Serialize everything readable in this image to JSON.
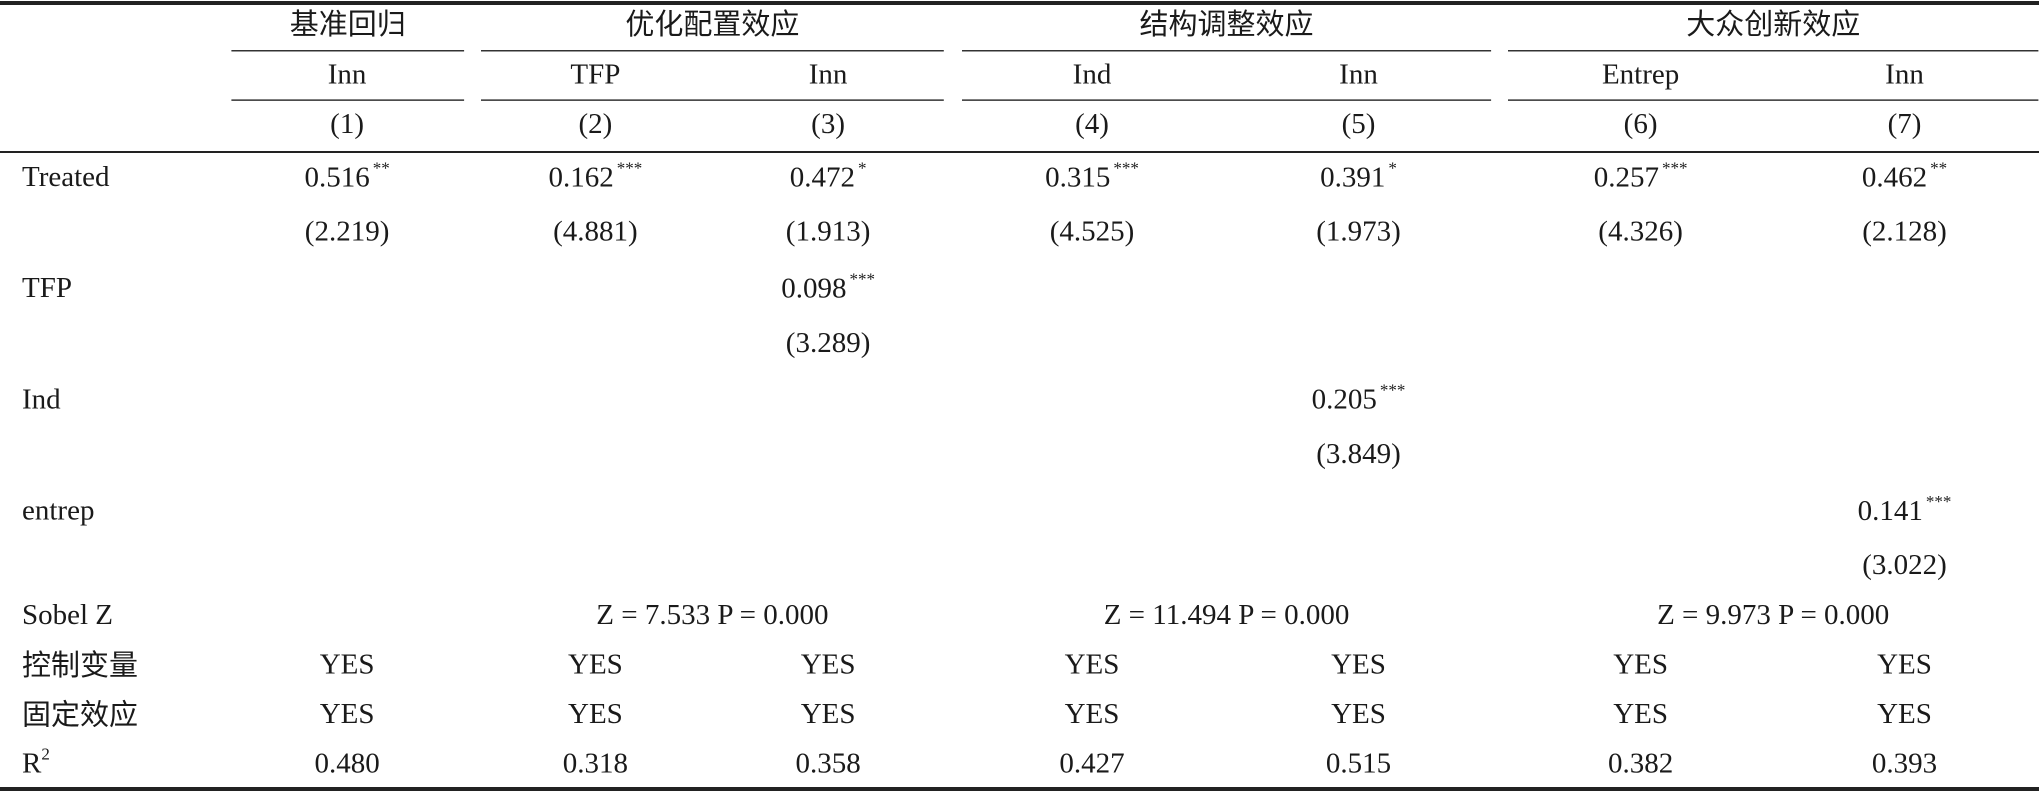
{
  "header": {
    "groups": [
      "基准回归",
      "优化配置效应",
      "结构调整效应",
      "大众创新效应"
    ],
    "dependent": [
      "Inn",
      "TFP",
      "Inn",
      "Ind",
      "Inn",
      "Entrep",
      "Inn"
    ],
    "numbers": [
      "(1)",
      "(2)",
      "(3)",
      "(4)",
      "(5)",
      "(6)",
      "(7)"
    ]
  },
  "rows": [
    {
      "label": "Treated",
      "coefficients": [
        {
          "value": "0.516",
          "stars": "**"
        },
        {
          "value": "0.162",
          "stars": "***"
        },
        {
          "value": "0.472",
          "stars": "*"
        },
        {
          "value": "0.315",
          "stars": "***"
        },
        {
          "value": "0.391",
          "stars": "*"
        },
        {
          "value": "0.257",
          "stars": "***"
        },
        {
          "value": "0.462",
          "stars": "**"
        }
      ],
      "t_stats": [
        "(2.219)",
        "(4.881)",
        "(1.913)",
        "(4.525)",
        "(1.973)",
        "(4.326)",
        "(2.128)"
      ]
    },
    {
      "label": "TFP",
      "coefficients": [
        null,
        null,
        {
          "value": "0.098",
          "stars": "***"
        },
        null,
        null,
        null,
        null
      ],
      "t_stats": [
        null,
        null,
        "(3.289)",
        null,
        null,
        null,
        null
      ]
    },
    {
      "label": "Ind",
      "coefficients": [
        null,
        null,
        null,
        null,
        {
          "value": "0.205",
          "stars": "***"
        },
        null,
        null
      ],
      "t_stats": [
        null,
        null,
        null,
        null,
        "(3.849)",
        null,
        null
      ]
    },
    {
      "label": "entrep",
      "coefficients": [
        null,
        null,
        null,
        null,
        null,
        null,
        {
          "value": "0.141",
          "stars": "***"
        }
      ],
      "t_stats": [
        null,
        null,
        null,
        null,
        null,
        null,
        "(3.022)"
      ]
    }
  ],
  "sobel": {
    "label": "Sobel Z",
    "cells": [
      "Z = 7.533  P = 0.000",
      "Z = 11.494  P = 0.000",
      "Z = 9.973  P = 0.000"
    ]
  },
  "controls": {
    "label": "控制变量",
    "cells": [
      "YES",
      "YES",
      "YES",
      "YES",
      "YES",
      "YES",
      "YES"
    ]
  },
  "fixed_effects": {
    "label": "固定效应",
    "cells": [
      "YES",
      "YES",
      "YES",
      "YES",
      "YES",
      "YES",
      "YES"
    ]
  },
  "r_squared": {
    "label": "R",
    "label_sup": "2",
    "cells": [
      "0.480",
      "0.318",
      "0.358",
      "0.427",
      "0.515",
      "0.382",
      "0.393"
    ]
  }
}
